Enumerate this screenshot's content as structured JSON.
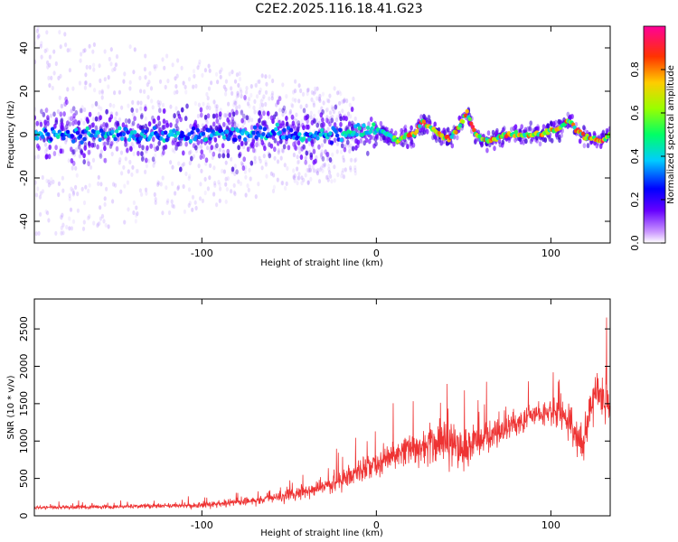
{
  "title": "C2E2.2025.116.18.41.G23",
  "chart_data": [
    {
      "type": "heatmap",
      "name": "spectrogram",
      "xlabel": "Height of straight line (km)",
      "ylabel": "Frequency (Hz)",
      "xlim": [
        -196,
        134
      ],
      "ylim": [
        -50,
        50
      ],
      "x_ticks": [
        -100,
        0,
        100
      ],
      "y_ticks": [
        -40,
        -20,
        0,
        20,
        40
      ],
      "grid": false,
      "ridge": {
        "x": [
          -196,
          -150,
          -100,
          -60,
          -40,
          -20,
          -5,
          0,
          5,
          12,
          18,
          22,
          26,
          30,
          36,
          42,
          47,
          52,
          57,
          62,
          68,
          75,
          85,
          93,
          100,
          105,
          110,
          115,
          120,
          128,
          134
        ],
        "freq": [
          0,
          0,
          0,
          1,
          0,
          0,
          1,
          2,
          1,
          -3,
          0,
          0,
          6,
          4,
          0,
          -2,
          3,
          10,
          0,
          -3,
          -2,
          0,
          0,
          0,
          2,
          3,
          7,
          2,
          -1,
          -3,
          0
        ]
      },
      "colorbar": {
        "label": "Normalized spectral amplitude",
        "range": [
          0.0,
          1.0
        ],
        "ticks": [
          "0.0",
          "0.2",
          "0.4",
          "0.6",
          "0.8"
        ]
      }
    },
    {
      "type": "line",
      "name": "snr",
      "xlabel": "Height of straight line (km)",
      "ylabel": "SNR (10 * v/v)",
      "xlim": [
        -196,
        134
      ],
      "ylim": [
        0,
        2900
      ],
      "x_ticks": [
        -100,
        0,
        100
      ],
      "y_ticks": [
        0,
        500,
        1000,
        1500,
        2000,
        2500
      ],
      "series_color": "#ee3333",
      "envelope": {
        "x": [
          -196,
          -150,
          -100,
          -70,
          -40,
          -20,
          0,
          20,
          40,
          50,
          60,
          70,
          80,
          90,
          100,
          110,
          118,
          125,
          134
        ],
        "mean": [
          110,
          120,
          140,
          200,
          320,
          480,
          700,
          900,
          1000,
          850,
          1050,
          1150,
          1250,
          1350,
          1380,
          1300,
          900,
          1700,
          1500
        ],
        "spread": [
          50,
          60,
          80,
          130,
          200,
          300,
          400,
          500,
          600,
          700,
          500,
          400,
          400,
          350,
          400,
          500,
          600,
          800,
          600
        ]
      }
    }
  ]
}
